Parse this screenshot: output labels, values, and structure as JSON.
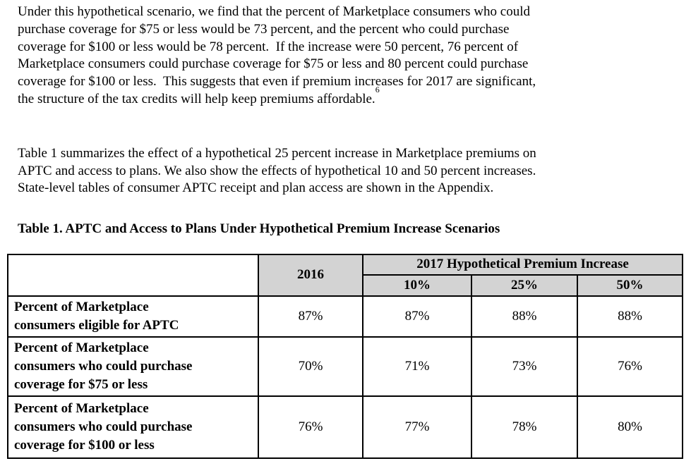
{
  "document": {
    "paragraph_1": {
      "text": "Under this hypothetical scenario, we find that the percent of Marketplace consumers who could\npurchase coverage for $75 or less would be 73 percent, and the percent who could purchase\ncoverage for $100 or less would be 78 percent.  If the increase were 50 percent, 76 percent of\nMarketplace consumers could purchase coverage for $75 or less and 80 percent could purchase\ncoverage for $100 or less.  This suggests that even if premium increases for 2017 are significant,\nthe structure of the tax credits will help keep premiums affordable.",
      "footnote_marker": "6"
    },
    "paragraph_2": {
      "text": "Table 1 summarizes the effect of a hypothetical 25 percent increase in Marketplace premiums on\nAPTC and access to plans. We also show the effects of hypothetical 10 and 50 percent increases.\nState-level tables of consumer APTC receipt and plan access are shown in the Appendix."
    },
    "table_title": "Table 1. APTC and Access to Plans Under Hypothetical Premium Increase Scenarios"
  },
  "table": {
    "header": {
      "baseline_year": "2016",
      "group_header": "2017 Hypothetical Premium Increase",
      "scenario_columns": [
        "10%",
        "25%",
        "50%"
      ]
    },
    "rows": [
      {
        "label": "Percent of Marketplace\nconsumers eligible for APTC",
        "values": [
          "87%",
          "87%",
          "88%",
          "88%"
        ]
      },
      {
        "label": "Percent of Marketplace\nconsumers who could purchase\ncoverage for $75 or less",
        "values": [
          "70%",
          "71%",
          "73%",
          "76%"
        ]
      },
      {
        "label": "Percent of Marketplace\nconsumers who could purchase\ncoverage for $100 or less",
        "values": [
          "76%",
          "77%",
          "78%",
          "80%"
        ]
      }
    ],
    "colors": {
      "header_bg": "#d3d3d3",
      "border": "#000000"
    }
  }
}
